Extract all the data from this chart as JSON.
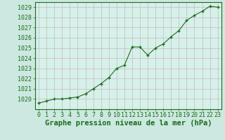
{
  "x": [
    0,
    1,
    2,
    3,
    4,
    5,
    6,
    7,
    8,
    9,
    10,
    11,
    12,
    13,
    14,
    15,
    16,
    17,
    18,
    19,
    20,
    21,
    22,
    23
  ],
  "y": [
    1019.6,
    1019.8,
    1020.0,
    1020.0,
    1020.1,
    1020.2,
    1020.5,
    1021.0,
    1021.5,
    1022.1,
    1023.0,
    1023.3,
    1025.1,
    1025.1,
    1024.3,
    1025.0,
    1025.4,
    1026.1,
    1026.7,
    1027.7,
    1028.2,
    1028.6,
    1029.1,
    1029.0
  ],
  "line_color": "#1a6b1a",
  "marker_color": "#1a6b1a",
  "bg_color": "#cce8e0",
  "plot_bg_color": "#d6f0ea",
  "grid_color": "#c8b8b8",
  "xlabel": "Graphe pression niveau de la mer (hPa)",
  "ylim_min": 1019.0,
  "ylim_max": 1029.5,
  "yticks": [
    1020,
    1021,
    1022,
    1023,
    1024,
    1025,
    1026,
    1027,
    1028,
    1029
  ],
  "xticks": [
    0,
    1,
    2,
    3,
    4,
    5,
    6,
    7,
    8,
    9,
    10,
    11,
    12,
    13,
    14,
    15,
    16,
    17,
    18,
    19,
    20,
    21,
    22,
    23
  ],
  "xlabel_fontsize": 7.5,
  "tick_fontsize": 6.0,
  "xlabel_fontweight": "bold",
  "line_width": 0.8,
  "marker_size": 3.0
}
